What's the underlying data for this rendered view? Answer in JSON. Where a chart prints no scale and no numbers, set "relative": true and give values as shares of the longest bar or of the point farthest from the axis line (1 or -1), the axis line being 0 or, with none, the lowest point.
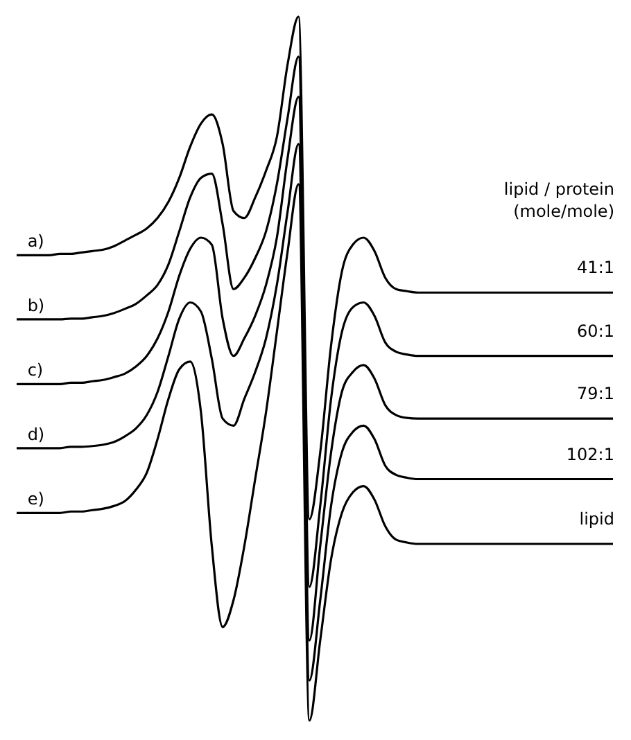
{
  "chart_data": {
    "type": "line",
    "relative": true,
    "legend": false,
    "categories": [
      null,
      null,
      null,
      null,
      null,
      null,
      null,
      null,
      null,
      null,
      null,
      null,
      null,
      null,
      null,
      null,
      null,
      null,
      null,
      null,
      null,
      null,
      null,
      null,
      null,
      null,
      null,
      null,
      null,
      null,
      null,
      null,
      null,
      null,
      null,
      null,
      null,
      null,
      null,
      null,
      null,
      null,
      null,
      null,
      null,
      null,
      null,
      null,
      null,
      null,
      null,
      null,
      null,
      null,
      null,
      null
    ],
    "series": [
      {
        "name": "a)",
        "color": "#000000",
        "values": [
          0.661,
          0.661,
          0.661,
          0.661,
          0.663,
          0.663,
          0.665,
          0.667,
          0.669,
          0.674,
          0.682,
          0.69,
          0.699,
          0.714,
          0.737,
          0.771,
          0.815,
          0.848,
          0.861,
          0.819,
          0.724,
          0.714,
          0.743,
          0.781,
          0.829,
          0.933,
          1,
          0.286,
          0.381,
          0.533,
          0.638,
          0.676,
          0.686,
          0.667,
          0.629,
          0.613,
          0.61,
          0.608,
          0.608,
          0.608,
          0.608,
          0.608,
          0.608,
          0.608,
          0.608,
          0.608,
          0.608,
          0.608,
          0.608,
          0.608,
          0.608,
          0.608,
          0.608,
          0.608,
          0.608,
          0.608
        ]
      },
      {
        "name": "b)",
        "color": "#000000",
        "values": [
          0.57,
          0.57,
          0.57,
          0.57,
          0.57,
          0.571,
          0.571,
          0.573,
          0.575,
          0.579,
          0.585,
          0.592,
          0.604,
          0.619,
          0.648,
          0.695,
          0.743,
          0.771,
          0.777,
          0.705,
          0.613,
          0.629,
          0.657,
          0.695,
          0.762,
          0.857,
          0.943,
          0.19,
          0.305,
          0.457,
          0.552,
          0.587,
          0.594,
          0.575,
          0.537,
          0.524,
          0.52,
          0.518,
          0.518,
          0.518,
          0.518,
          0.518,
          0.518,
          0.518,
          0.518,
          0.518,
          0.518,
          0.518,
          0.518,
          0.518,
          0.518,
          0.518,
          0.518,
          0.518,
          0.518,
          0.518
        ]
      },
      {
        "name": "c)",
        "color": "#000000",
        "values": [
          0.478,
          0.478,
          0.478,
          0.478,
          0.478,
          0.48,
          0.48,
          0.482,
          0.484,
          0.488,
          0.493,
          0.503,
          0.518,
          0.543,
          0.581,
          0.632,
          0.67,
          0.686,
          0.676,
          0.571,
          0.518,
          0.543,
          0.575,
          0.619,
          0.686,
          0.8,
          0.886,
          0.114,
          0.248,
          0.381,
          0.467,
          0.495,
          0.505,
          0.486,
          0.448,
          0.434,
          0.43,
          0.429,
          0.429,
          0.429,
          0.429,
          0.429,
          0.429,
          0.429,
          0.429,
          0.429,
          0.429,
          0.429,
          0.429,
          0.429,
          0.429,
          0.429,
          0.429,
          0.429,
          0.429,
          0.429
        ]
      },
      {
        "name": "d)",
        "color": "#000000",
        "values": [
          0.387,
          0.387,
          0.387,
          0.387,
          0.387,
          0.389,
          0.389,
          0.39,
          0.392,
          0.396,
          0.404,
          0.415,
          0.434,
          0.467,
          0.518,
          0.571,
          0.594,
          0.581,
          0.514,
          0.429,
          0.419,
          0.457,
          0.495,
          0.543,
          0.619,
          0.724,
          0.819,
          0.057,
          0.171,
          0.305,
          0.381,
          0.41,
          0.419,
          0.4,
          0.362,
          0.349,
          0.345,
          0.343,
          0.343,
          0.343,
          0.343,
          0.343,
          0.343,
          0.343,
          0.343,
          0.343,
          0.343,
          0.343,
          0.343,
          0.343,
          0.343,
          0.343,
          0.343,
          0.343,
          0.343,
          0.343
        ]
      },
      {
        "name": "e)",
        "color": "#000000",
        "values": [
          0.295,
          0.295,
          0.295,
          0.295,
          0.295,
          0.297,
          0.297,
          0.299,
          0.301,
          0.305,
          0.312,
          0.328,
          0.352,
          0.4,
          0.457,
          0.499,
          0.51,
          0.438,
          0.248,
          0.133,
          0.171,
          0.248,
          0.343,
          0.438,
          0.552,
          0.667,
          0.762,
          0,
          0.114,
          0.229,
          0.295,
          0.324,
          0.333,
          0.314,
          0.276,
          0.257,
          0.253,
          0.251,
          0.251,
          0.251,
          0.251,
          0.251,
          0.251,
          0.251,
          0.251,
          0.251,
          0.251,
          0.251,
          0.251,
          0.251,
          0.251,
          0.251,
          0.251,
          0.251,
          0.251,
          0.251
        ]
      }
    ],
    "annotations": [
      "lipid / protein",
      "(mole/mole)",
      {
        "text": "41:1",
        "y": 0.608
      },
      {
        "text": "60:1",
        "y": 0.518
      },
      {
        "text": "79:1",
        "y": 0.429
      },
      {
        "text": "102:1",
        "y": 0.343
      },
      {
        "text": "lipid",
        "y": 0.251
      }
    ]
  }
}
